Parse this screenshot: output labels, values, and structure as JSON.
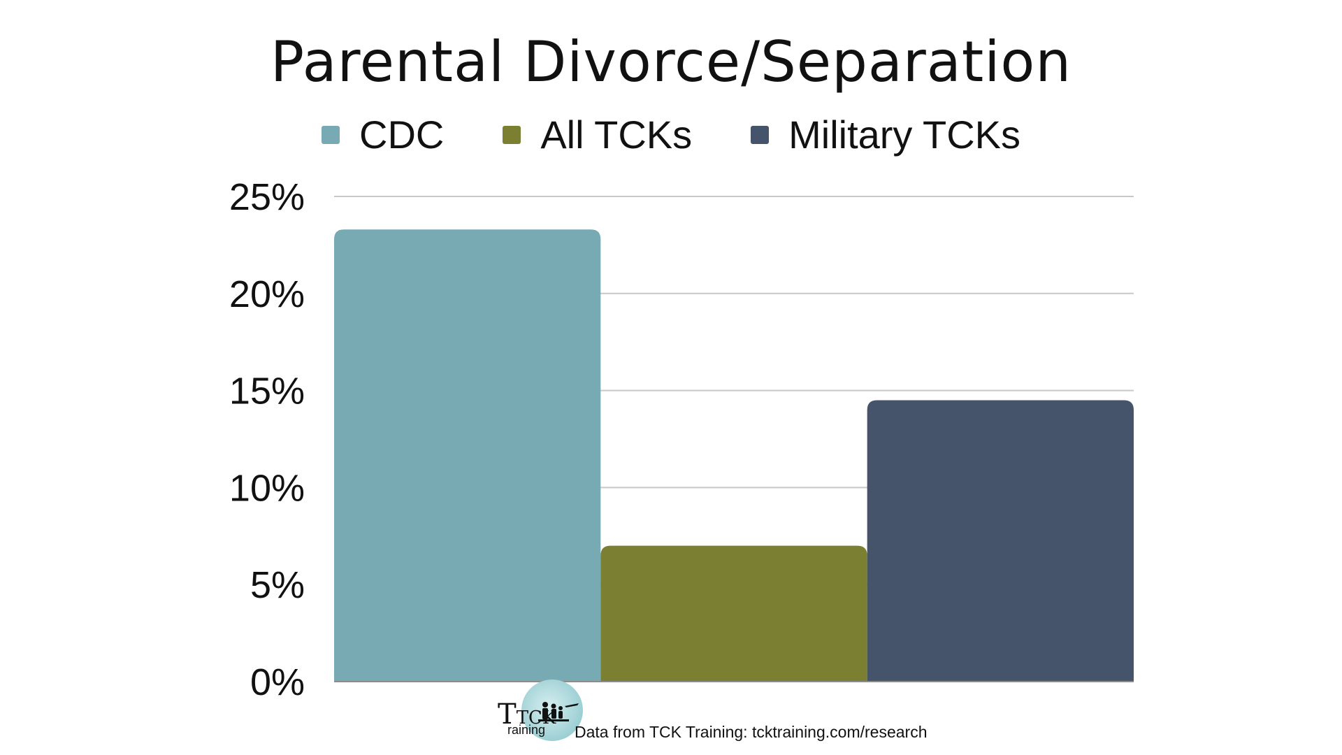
{
  "chart_data": {
    "type": "bar",
    "title": "Parental Divorce/Separation",
    "series": [
      {
        "name": "CDC",
        "value": 23.3,
        "color": "#78aab4"
      },
      {
        "name": "All TCKs",
        "value": 7.0,
        "color": "#7b7f32"
      },
      {
        "name": "Military TCKs",
        "value": 14.5,
        "color": "#45546b"
      }
    ],
    "y_ticks": [
      "0%",
      "5%",
      "10%",
      "15%",
      "20%",
      "25%"
    ],
    "ylim": [
      0,
      25
    ],
    "y_unit": "%",
    "grid": true,
    "legend_position": "top-center",
    "gridline_color": "#c8c8c8"
  },
  "footer": {
    "logo_text_main": "TCK",
    "logo_text_sub": "raining",
    "source_note": "Data from TCK Training: tcktraining.com/research"
  }
}
